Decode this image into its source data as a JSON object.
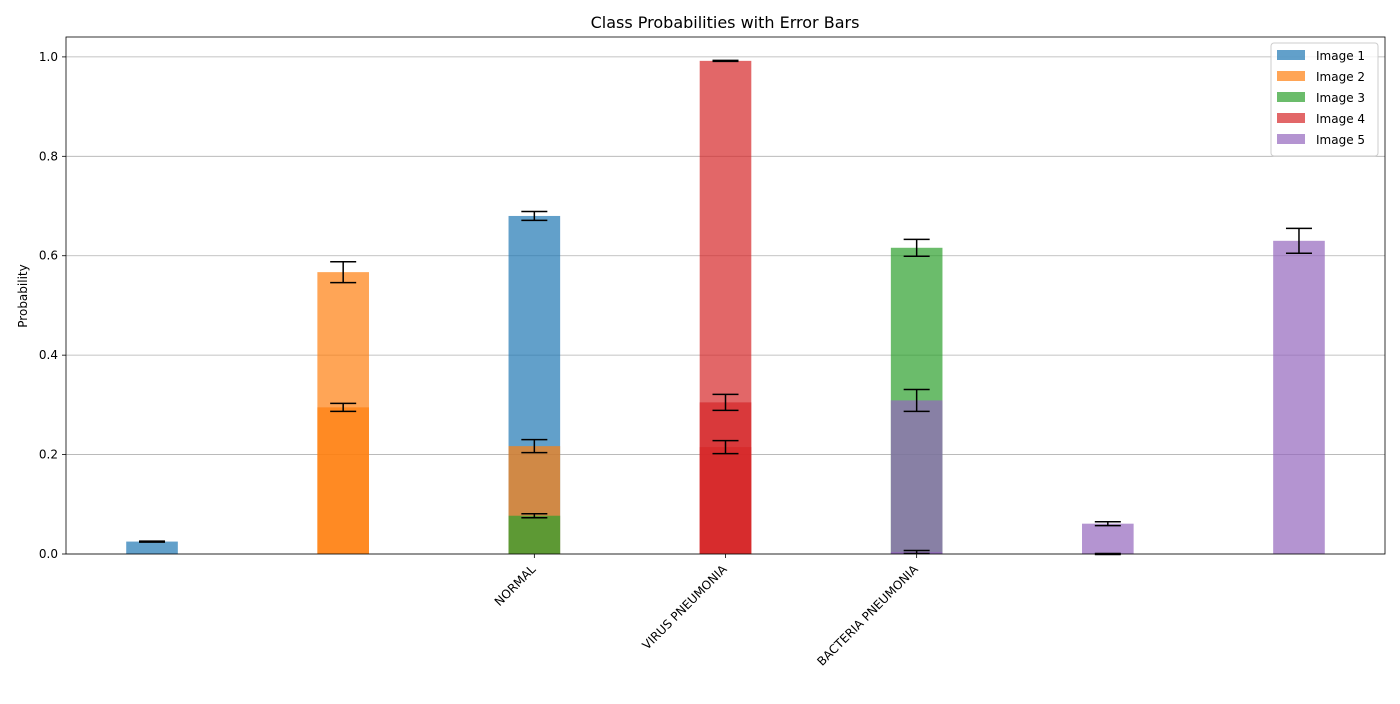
{
  "chart_data": {
    "type": "bar",
    "title": "Class Probabilities with Error Bars",
    "xlabel": "",
    "ylabel": "Probability",
    "ylim": [
      0,
      1.04
    ],
    "yticks": [
      "0.0",
      "0.2",
      "0.4",
      "0.6",
      "0.8",
      "1.0"
    ],
    "x_tick_labels": [
      {
        "label": "NORMAL",
        "x": 2
      },
      {
        "label": "VIRUS PNEUMONIA",
        "x": 3
      },
      {
        "label": "BACTERIA PNEUMONIA",
        "x": 4
      }
    ],
    "grid": "y",
    "legend_position": "top-right",
    "bar_alpha": 0.7,
    "series": [
      {
        "name": "Image 1",
        "color": "#1f77b4",
        "bars": [
          {
            "x": 0,
            "value": 0.025,
            "error": 0.001
          },
          {
            "x": 2,
            "value": 0.68,
            "error": 0.009
          }
        ]
      },
      {
        "name": "Image 2",
        "color": "#ff7f0e",
        "bars": [
          {
            "x": 1,
            "value": 0.567,
            "error": 0.021
          },
          {
            "x": 1,
            "value": 0.295,
            "error": 0.008
          },
          {
            "x": 2,
            "value": 0.217,
            "error": 0.013
          }
        ]
      },
      {
        "name": "Image 3",
        "color": "#2ca02c",
        "bars": [
          {
            "x": 2,
            "value": 0.077,
            "error": 0.004
          },
          {
            "x": 4,
            "value": 0.616,
            "error": 0.017
          }
        ]
      },
      {
        "name": "Image 4",
        "color": "#d62728",
        "bars": [
          {
            "x": 3,
            "value": 0.992,
            "error": 0.001
          },
          {
            "x": 3,
            "value": 0.305,
            "error": 0.016
          },
          {
            "x": 3,
            "value": 0.215,
            "error": 0.013
          }
        ]
      },
      {
        "name": "Image 5",
        "color": "#9467bd",
        "bars": [
          {
            "x": 4,
            "value": 0.309,
            "error": 0.022
          },
          {
            "x": 4,
            "value": 0.004,
            "error": 0.003
          },
          {
            "x": 5,
            "value": 0.061,
            "error": 0.004
          },
          {
            "x": 5,
            "value": 0.0,
            "error": 0.001
          },
          {
            "x": 6,
            "value": 0.63,
            "error": 0.025
          }
        ]
      }
    ]
  }
}
